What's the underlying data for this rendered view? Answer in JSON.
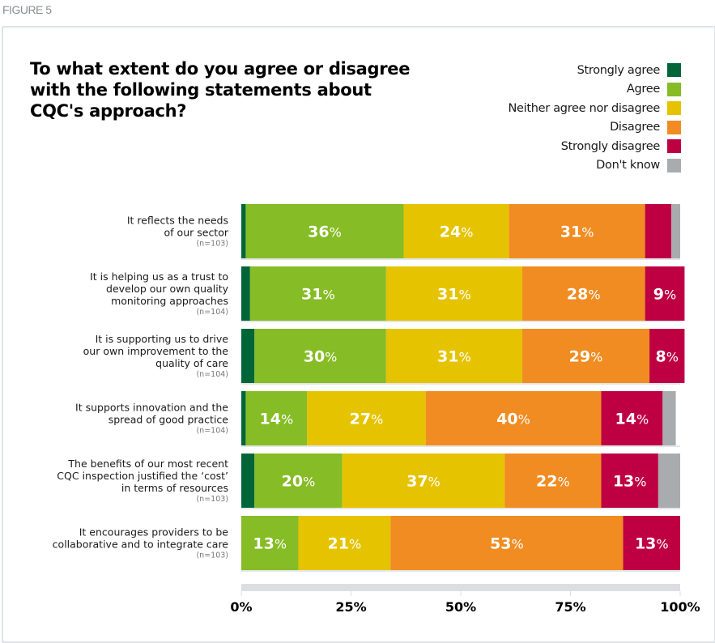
{
  "figure_label": "FIGURE 5",
  "chart_data": {
    "type": "bar",
    "orientation": "horizontal",
    "stacked": true,
    "title": "To what extent do you agree or disagree with the following statements about CQC's approach?",
    "title_lines": [
      "To what extent do you agree or disagree",
      "with the following statements about",
      "CQC's approach?"
    ],
    "xlabel": "",
    "ylabel": "",
    "xlim": [
      0,
      100
    ],
    "x_ticks": [
      0,
      25,
      50,
      75,
      100
    ],
    "x_tick_labels": [
      "0%",
      "25%",
      "50%",
      "75%",
      "100%"
    ],
    "legend_position": "top-right",
    "categories": [
      {
        "lines": [
          "It reflects the needs",
          "of our sector"
        ],
        "n": "(n=103)"
      },
      {
        "lines": [
          "It is helping us as a trust to",
          "develop our own quality",
          "monitoring approaches"
        ],
        "n": "(n=104)"
      },
      {
        "lines": [
          "It is supporting us to drive",
          "our own improvement to the",
          "quality of care"
        ],
        "n": "(n=104)"
      },
      {
        "lines": [
          "It supports innovation and the",
          "spread of good practice"
        ],
        "n": "(n=104)"
      },
      {
        "lines": [
          "The benefits of our most recent",
          "CQC inspection justified the ‘cost’",
          "in terms of resources"
        ],
        "n": "(n=103)"
      },
      {
        "lines": [
          "It encourages providers to be",
          "collaborative and to integrate care"
        ],
        "n": "(n=103)"
      }
    ],
    "series": [
      {
        "name": "Strongly agree",
        "color": "#00663a",
        "values": [
          1,
          2,
          3,
          1,
          3,
          0
        ],
        "labels": [
          "",
          "",
          "",
          "",
          "",
          ""
        ]
      },
      {
        "name": "Agree",
        "color": "#86bc25",
        "values": [
          36,
          31,
          30,
          14,
          20,
          13
        ],
        "labels": [
          "36%",
          "31%",
          "30%",
          "14%",
          "20%",
          "13%"
        ]
      },
      {
        "name": "Neither agree nor disagree",
        "color": "#e6c300",
        "values": [
          24,
          31,
          31,
          27,
          37,
          21
        ],
        "labels": [
          "24%",
          "31%",
          "31%",
          "27%",
          "37%",
          "21%"
        ]
      },
      {
        "name": "Disagree",
        "color": "#f08c21",
        "values": [
          31,
          28,
          29,
          40,
          22,
          53
        ],
        "labels": [
          "31%",
          "28%",
          "29%",
          "40%",
          "22%",
          "53%"
        ]
      },
      {
        "name": "Strongly disagree",
        "color": "#be0042",
        "values": [
          6,
          9,
          8,
          14,
          13,
          13
        ],
        "labels": [
          "",
          "9%",
          "8%",
          "14%",
          "13%",
          "13%"
        ]
      },
      {
        "name": "Don't know",
        "color": "#a9acaf",
        "values": [
          2,
          0,
          0,
          3,
          5,
          0
        ],
        "labels": [
          "",
          "",
          "",
          "",
          "",
          ""
        ]
      }
    ]
  }
}
